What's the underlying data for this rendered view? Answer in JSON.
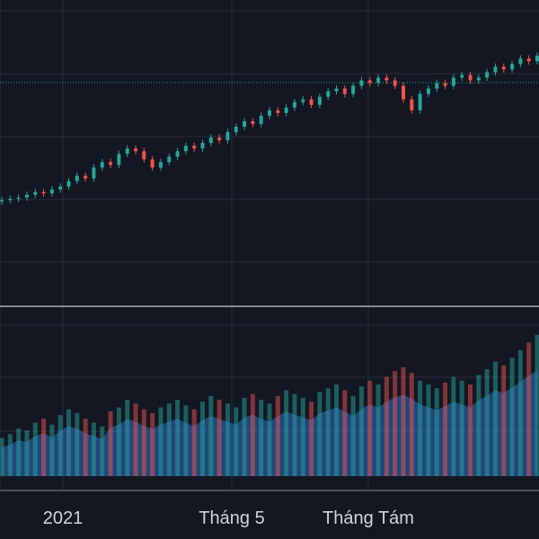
{
  "theme": {
    "background": "#131722",
    "grid": "#2a2e39",
    "up_color": "#26a69a",
    "down_color": "#ef5350",
    "pane_separator": "#868993",
    "volume_ma_fill": "#2f6fc0",
    "price_line": "#26a69a"
  },
  "time_axis": {
    "labels": [
      "2021",
      "Tháng 5",
      "Tháng Tám"
    ]
  },
  "chart_data": {
    "type": "candlestick",
    "panes": [
      "price",
      "volume"
    ],
    "price_line_level": 4,
    "series": [
      {
        "name": "price",
        "values": [
          43,
          43.5,
          44,
          45,
          46,
          45.5,
          47,
          48,
          50,
          52,
          51,
          55,
          57,
          56,
          60,
          62,
          61,
          58,
          55,
          57,
          59,
          61,
          63,
          62,
          64,
          66,
          65,
          68,
          70,
          72,
          71,
          74,
          76,
          75,
          77,
          79,
          80,
          78,
          81,
          83,
          84,
          82,
          85,
          87,
          86,
          88,
          87,
          85,
          80,
          76,
          82,
          84,
          86,
          85,
          88,
          89,
          87,
          88,
          90,
          92,
          91,
          93,
          95,
          94,
          96
        ]
      },
      {
        "name": "volume",
        "values": [
          20,
          22,
          25,
          24,
          28,
          30,
          27,
          32,
          35,
          33,
          30,
          28,
          26,
          34,
          36,
          40,
          38,
          35,
          33,
          36,
          38,
          40,
          37,
          35,
          39,
          42,
          40,
          38,
          36,
          41,
          43,
          40,
          38,
          42,
          45,
          43,
          41,
          39,
          44,
          46,
          48,
          45,
          42,
          47,
          50,
          48,
          52,
          55,
          57,
          54,
          50,
          48,
          46,
          49,
          52,
          50,
          48,
          53,
          56,
          60,
          58,
          62,
          66,
          70,
          74
        ]
      }
    ]
  }
}
